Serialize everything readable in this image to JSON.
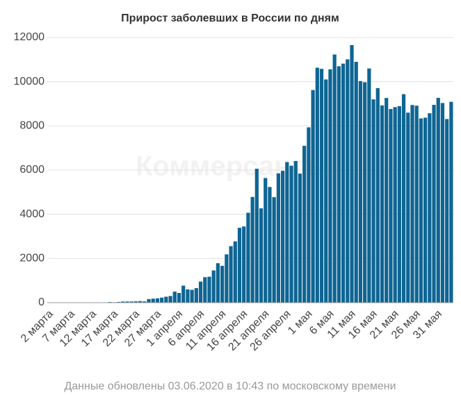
{
  "chart_data": {
    "type": "bar",
    "title": "Прирост заболевших в России по дням",
    "watermark": "Коммерсантъ",
    "footnote": "Данные обновлены 03.06.2020 в 10:43 по московскому времени",
    "color": "#0e6593",
    "grid": true,
    "ylim": [
      0,
      12000
    ],
    "yticks": [
      0,
      2000,
      4000,
      6000,
      8000,
      10000,
      12000
    ],
    "categories": [
      "2 марта",
      null,
      null,
      null,
      null,
      "7 марта",
      null,
      null,
      null,
      null,
      "12 марта",
      null,
      null,
      null,
      null,
      "17 марта",
      null,
      null,
      null,
      null,
      "22 марта",
      null,
      null,
      null,
      null,
      "27 марта",
      null,
      null,
      null,
      null,
      "1 апреля",
      null,
      null,
      null,
      null,
      "6 апреля",
      null,
      null,
      null,
      null,
      "11 апреля",
      null,
      null,
      null,
      null,
      "16 апреля",
      null,
      null,
      null,
      null,
      "21 апреля",
      null,
      null,
      null,
      null,
      "26 апреля",
      null,
      null,
      null,
      null,
      "1 мая",
      null,
      null,
      null,
      null,
      "6 мая",
      null,
      null,
      null,
      null,
      "11 мая",
      null,
      null,
      null,
      null,
      "16 мая",
      null,
      null,
      null,
      null,
      "21 мая",
      null,
      null,
      null,
      null,
      "26 мая",
      null,
      null,
      null,
      null,
      "31 мая",
      null,
      null,
      null
    ],
    "values": [
      1,
      0,
      0,
      1,
      6,
      2,
      3,
      0,
      3,
      8,
      6,
      17,
      14,
      4,
      30,
      21,
      33,
      52,
      54,
      53,
      61,
      71,
      57,
      163,
      182,
      196,
      228,
      270,
      302,
      501,
      440,
      771,
      601,
      582,
      658,
      954,
      1154,
      1175,
      1459,
      1786,
      1667,
      2186,
      2558,
      2774,
      3388,
      3448,
      4070,
      4785,
      6060,
      4268,
      5642,
      5236,
      4774,
      5849,
      5966,
      6361,
      6198,
      6411,
      5841,
      7099,
      7933,
      9623,
      10633,
      10581,
      10102,
      10559,
      11231,
      10699,
      10817,
      11012,
      11656,
      10899,
      10028,
      9974,
      10598,
      9200,
      9709,
      8926,
      9263,
      8764,
      8849,
      8894,
      9434,
      8599,
      8946,
      8915,
      8338,
      8371,
      8572,
      8952,
      9268,
      9035,
      8310,
      9090
    ]
  }
}
